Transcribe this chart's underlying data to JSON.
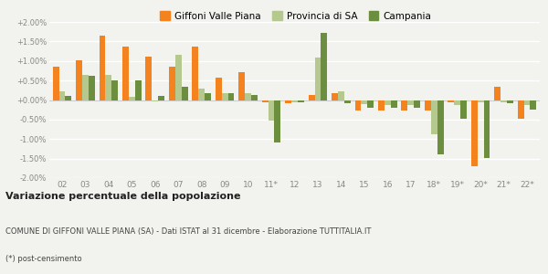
{
  "categories": [
    "02",
    "03",
    "04",
    "05",
    "06",
    "07",
    "08",
    "09",
    "10",
    "11*",
    "12",
    "13",
    "14",
    "15",
    "16",
    "17",
    "18*",
    "19*",
    "20*",
    "21*",
    "22*"
  ],
  "giffoni": [
    0.85,
    1.01,
    1.65,
    1.38,
    1.1,
    0.85,
    1.38,
    0.57,
    0.72,
    -0.05,
    -0.08,
    0.13,
    0.18,
    -0.27,
    -0.27,
    -0.27,
    -0.27,
    -0.07,
    -1.7,
    0.35,
    -0.48
  ],
  "provincia": [
    0.22,
    0.65,
    0.65,
    0.08,
    -0.03,
    1.15,
    0.3,
    0.18,
    0.17,
    -0.52,
    -0.05,
    1.08,
    0.22,
    -0.1,
    -0.13,
    -0.13,
    -0.88,
    -0.12,
    -0.05,
    -0.05,
    -0.12
  ],
  "campania": [
    0.1,
    0.62,
    0.5,
    0.5,
    0.1,
    0.35,
    0.18,
    0.18,
    0.12,
    -1.08,
    -0.05,
    1.72,
    -0.08,
    -0.2,
    -0.2,
    -0.2,
    -1.4,
    -0.47,
    -1.48,
    -0.08,
    -0.25
  ],
  "color_giffoni": "#f4831f",
  "color_provincia": "#b5c98e",
  "color_campania": "#6b8f3e",
  "bg_color": "#f2f2ee",
  "grid_color": "#ffffff",
  "zero_line_color": "#cccccc",
  "tick_color": "#888888",
  "title": "Variazione percentuale della popolazione",
  "subtitle": "COMUNE DI GIFFONI VALLE PIANA (SA) - Dati ISTAT al 31 dicembre - Elaborazione TUTTITALIA.IT",
  "footnote": "(*) post-censimento",
  "ylim": [
    -2.0,
    2.0
  ],
  "yticks": [
    -2.0,
    -1.5,
    -1.0,
    -0.5,
    0.0,
    0.5,
    1.0,
    1.5,
    2.0
  ]
}
